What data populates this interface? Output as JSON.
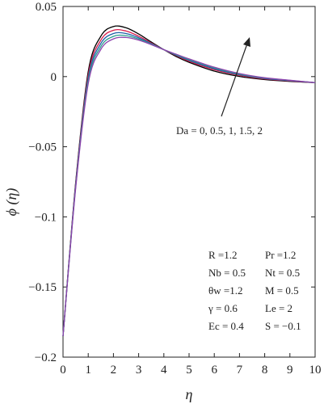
{
  "chart_data": {
    "type": "line",
    "xlabel": "η",
    "ylabel": "ϕ (η)",
    "xlim": [
      0,
      10
    ],
    "ylim": [
      -0.2,
      0.05
    ],
    "x_ticks": [
      "0",
      "1",
      "2",
      "3",
      "4",
      "5",
      "6",
      "7",
      "8",
      "9",
      "10"
    ],
    "y_ticks": [
      "0.05",
      "0",
      "−0.05",
      "−0.1",
      "−0.15",
      "−0.2"
    ],
    "grid": false,
    "annotation": "Da = 0, 0.5, 1, 1.5, 2",
    "parameters": [
      [
        "R =1.2",
        "Pr =1.2"
      ],
      [
        "Nb = 0.5",
        "Nt = 0.5"
      ],
      [
        "θw =1.2",
        "M = 0.5"
      ],
      [
        "γ = 0.6",
        "Le = 2"
      ],
      [
        "Ec = 0.4",
        "S = −0.1"
      ]
    ],
    "x": [
      0,
      0.5,
      1,
      1.5,
      2,
      2.5,
      3,
      3.5,
      4,
      4.5,
      5,
      6,
      7,
      8,
      9,
      10
    ],
    "series": [
      {
        "color": "#000000",
        "values": [
          -0.185,
          -0.076,
          0.0036,
          0.0288,
          0.0357,
          0.0348,
          0.0304,
          0.0247,
          0.0192,
          0.0142,
          0.0102,
          0.0039,
          0.0001,
          -0.0021,
          -0.0034,
          -0.0043
        ]
      },
      {
        "color": "#d81b4a",
        "values": [
          -0.185,
          -0.077,
          0.0012,
          0.026,
          0.033,
          0.0325,
          0.0288,
          0.024,
          0.0192,
          0.0149,
          0.011,
          0.0049,
          0.0009,
          -0.0017,
          -0.0031,
          -0.0043
        ]
      },
      {
        "color": "#1f5fa8",
        "values": [
          -0.185,
          -0.078,
          -0.001,
          0.0236,
          0.0307,
          0.0307,
          0.0277,
          0.0235,
          0.0192,
          0.0152,
          0.0116,
          0.0056,
          0.0014,
          -0.0013,
          -0.0029,
          -0.0043
        ]
      },
      {
        "color": "#2a9d8f",
        "values": [
          -0.185,
          -0.079,
          -0.003,
          0.0214,
          0.0287,
          0.0292,
          0.0268,
          0.0231,
          0.0192,
          0.0156,
          0.0121,
          0.0062,
          0.0018,
          -0.001,
          -0.0027,
          -0.0043
        ]
      },
      {
        "color": "#8e44ad",
        "values": [
          -0.185,
          -0.08,
          -0.005,
          0.0194,
          0.0269,
          0.0279,
          0.026,
          0.0228,
          0.0192,
          0.0159,
          0.0126,
          0.0067,
          0.0022,
          -0.0008,
          -0.0026,
          -0.0043
        ]
      }
    ]
  }
}
